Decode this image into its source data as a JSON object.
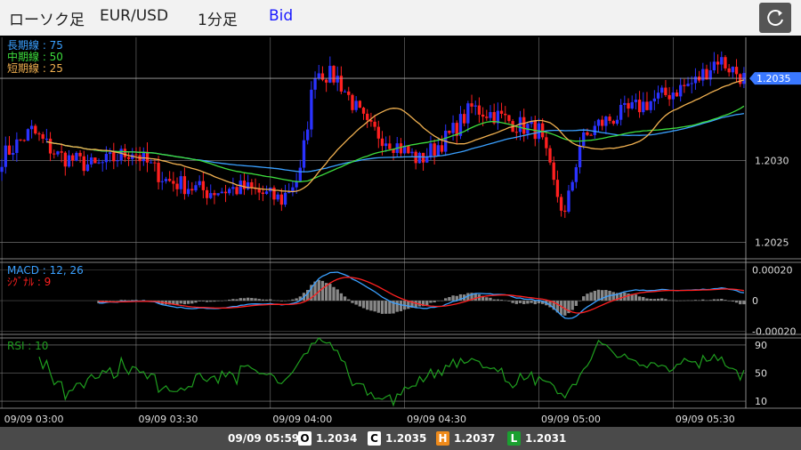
{
  "header": {
    "chart_type": "ローソク足",
    "symbol": "EUR/USD",
    "timeframe": "1分足",
    "price_type": "Bid",
    "refresh_icon": "refresh-icon"
  },
  "footer": {
    "time": "09/09 05:59",
    "open_label": "O",
    "open": "1.2034",
    "close_label": "C",
    "close": "1.2035",
    "high_label": "H",
    "high": "1.2037",
    "low_label": "L",
    "low": "1.2031",
    "colors": {
      "open": "#000000",
      "close": "#000000",
      "high": "#ee8a1a",
      "low": "#1aa030"
    }
  },
  "chart_data": [
    {
      "type": "candlestick",
      "panel": "price",
      "yticks": [
        "1.2035",
        "1.2030",
        "1.2025"
      ],
      "ylim": [
        1.2024,
        1.20375
      ],
      "current_price": "1.2035",
      "xticks": [
        "09/09 03:00",
        "09/09 03:30",
        "09/09 04:00",
        "09/09 04:30",
        "09/09 05:00",
        "09/09 05:30"
      ],
      "legend": [
        {
          "name": "長期線 : 75",
          "color": "#3aa0ff"
        },
        {
          "name": "中期線 : 50",
          "color": "#3ddc3d"
        },
        {
          "name": "短期線 : 25",
          "color": "#f0b050"
        }
      ],
      "colors": {
        "up": "#2a32ff",
        "down": "#ff2020"
      }
    },
    {
      "type": "line+histogram",
      "panel": "macd",
      "yticks": [
        "0.00020",
        "0",
        "-0.00020"
      ],
      "ylim": [
        -0.00022,
        0.00025
      ],
      "legend": [
        {
          "name": "MACD : 12, 26",
          "color": "#3aa0ff"
        },
        {
          "name": "ｼｸﾞﾅﾙ : 9",
          "color": "#ff2020"
        }
      ]
    },
    {
      "type": "line",
      "panel": "rsi",
      "yticks": [
        "90",
        "50",
        "10"
      ],
      "ylim": [
        0,
        100
      ],
      "legend": [
        {
          "name": "RSI : 10",
          "color": "#1f9e1f"
        }
      ]
    }
  ]
}
